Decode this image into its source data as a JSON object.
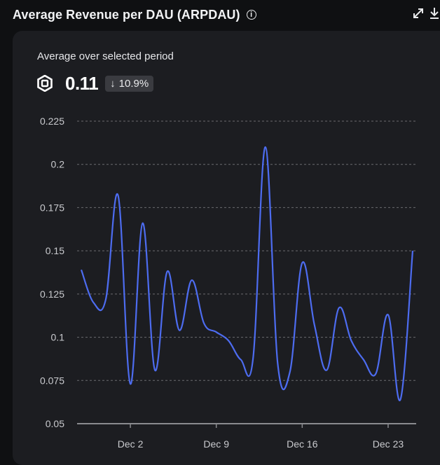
{
  "header": {
    "title": "Average Revenue per DAU (ARPDAU)",
    "info_icon": "info-circle-icon",
    "expand_icon": "expand-arrows-icon",
    "download_icon": "download-icon"
  },
  "summary": {
    "subtitle": "Average over selected period",
    "currency_icon": "robux-icon",
    "value": "0.11",
    "change": "10.9%",
    "change_direction": "down",
    "change_arrow": "↓"
  },
  "colors": {
    "line": "#4d6cf0",
    "grid": "#6b6c70",
    "axis": "#8a8b8f"
  },
  "chart_data": {
    "type": "line",
    "title": "",
    "xlabel": "",
    "ylabel": "",
    "ylim": [
      0.05,
      0.225
    ],
    "y_ticks": [
      "0.225",
      "0.2",
      "0.175",
      "0.15",
      "0.125",
      "0.1",
      "0.075",
      "0.05"
    ],
    "x_tick_labels": [
      "Dec 2",
      "Dec 9",
      "Dec 16",
      "Dec 23"
    ],
    "x_range": [
      "2024-11-28",
      "2024-12-25"
    ],
    "grid": true,
    "series": [
      {
        "x": [
          "2024-11-28",
          "2024-11-29",
          "2024-11-30",
          "2024-12-01",
          "2024-12-02",
          "2024-12-03",
          "2024-12-04",
          "2024-12-05",
          "2024-12-06",
          "2024-12-07",
          "2024-12-08",
          "2024-12-09",
          "2024-12-10",
          "2024-12-11",
          "2024-12-12",
          "2024-12-13",
          "2024-12-14",
          "2024-12-15",
          "2024-12-16",
          "2024-12-17",
          "2024-12-18",
          "2024-12-19",
          "2024-12-20",
          "2024-12-21",
          "2024-12-22",
          "2024-12-23",
          "2024-12-24",
          "2024-12-25"
        ],
        "values": [
          0.139,
          0.12,
          0.122,
          0.182,
          0.073,
          0.166,
          0.081,
          0.138,
          0.104,
          0.133,
          0.108,
          0.103,
          0.098,
          0.087,
          0.088,
          0.21,
          0.085,
          0.08,
          0.143,
          0.107,
          0.081,
          0.117,
          0.098,
          0.087,
          0.079,
          0.113,
          0.064,
          0.15
        ]
      }
    ]
  }
}
